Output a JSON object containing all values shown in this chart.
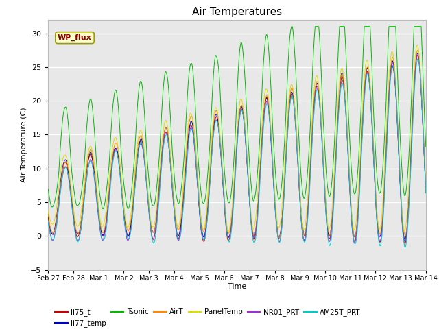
{
  "title": "Air Temperatures",
  "xlabel": "Time",
  "ylabel": "Air Temperature (C)",
  "ylim": [
    -5,
    32
  ],
  "yticks": [
    -5,
    0,
    5,
    10,
    15,
    20,
    25,
    30
  ],
  "series_colors": {
    "li75_t": "#cc0000",
    "li77_temp": "#0000cc",
    "Tsonic": "#00bb00",
    "AirT": "#ff8800",
    "PanelTemp": "#dddd00",
    "NR01_PRT": "#9933cc",
    "AM25T_PRT": "#00cccc"
  },
  "annotation_text": "WP_flux",
  "annotation_color": "#880000",
  "annotation_bg": "#ffffcc",
  "annotation_border": "#999900",
  "background_color": "#e8e8e8",
  "grid_color": "#ffffff",
  "xtick_labels": [
    "Feb 27",
    "Feb 28",
    "Mar 1",
    "Mar 2",
    "Mar 3",
    "Mar 4",
    "Mar 5",
    "Mar 6",
    "Mar 7",
    "Mar 8",
    "Mar 9",
    "Mar 10",
    "Mar 11",
    "Mar 12",
    "Mar 13",
    "Mar 14"
  ],
  "xtick_positions": [
    0,
    1,
    2,
    3,
    4,
    5,
    6,
    7,
    8,
    9,
    10,
    11,
    12,
    13,
    14,
    15
  ]
}
